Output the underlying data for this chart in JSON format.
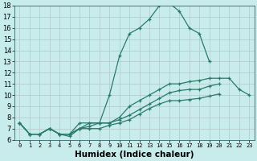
{
  "xlabel": "Humidex (Indice chaleur)",
  "ylabel": "",
  "xlim": [
    -0.5,
    23.5
  ],
  "ylim": [
    6,
    18
  ],
  "yticks": [
    6,
    7,
    8,
    9,
    10,
    11,
    12,
    13,
    14,
    15,
    16,
    17,
    18
  ],
  "xticks": [
    0,
    1,
    2,
    3,
    4,
    5,
    6,
    7,
    8,
    9,
    10,
    11,
    12,
    13,
    14,
    15,
    16,
    17,
    18,
    19,
    20,
    21,
    22,
    23
  ],
  "bg_color": "#c8ecec",
  "grid_color": "#b0c8c8",
  "line_color": "#2a7a6a",
  "lines": [
    {
      "x": [
        0,
        1,
        2,
        3,
        4,
        5,
        6,
        7,
        8,
        9,
        10,
        11,
        12,
        13,
        14,
        15,
        16,
        17,
        18,
        19
      ],
      "y": [
        7.5,
        6.5,
        6.5,
        7.0,
        6.5,
        6.5,
        7.5,
        7.5,
        7.5,
        10.0,
        13.5,
        15.5,
        16.0,
        16.8,
        18.0,
        18.2,
        17.5,
        16.0,
        15.5,
        13.0
      ]
    },
    {
      "x": [
        0,
        1,
        2,
        3,
        4,
        5,
        6,
        7,
        8,
        9,
        10,
        11,
        12,
        13,
        14,
        15,
        16,
        17,
        18,
        19,
        20,
        21,
        22,
        23
      ],
      "y": [
        7.5,
        6.5,
        6.5,
        7.0,
        6.5,
        6.5,
        7.0,
        7.5,
        7.5,
        7.5,
        8.0,
        9.0,
        9.5,
        10.0,
        10.5,
        11.0,
        11.0,
        11.2,
        11.3,
        11.5,
        11.5,
        11.5,
        10.5,
        10.0
      ]
    },
    {
      "x": [
        0,
        1,
        2,
        3,
        4,
        5,
        6,
        7,
        8,
        9,
        10,
        11,
        12,
        13,
        14,
        15,
        16,
        17,
        18,
        19,
        20
      ],
      "y": [
        7.5,
        6.5,
        6.5,
        7.0,
        6.5,
        6.5,
        7.0,
        7.2,
        7.5,
        7.5,
        7.8,
        8.2,
        8.7,
        9.2,
        9.7,
        10.2,
        10.4,
        10.5,
        10.5,
        10.8,
        11.0
      ]
    },
    {
      "x": [
        0,
        1,
        2,
        3,
        4,
        5,
        6,
        7,
        8,
        9,
        10,
        11,
        12,
        13,
        14,
        15,
        16,
        17,
        18,
        19,
        20
      ],
      "y": [
        7.5,
        6.5,
        6.5,
        7.0,
        6.5,
        6.3,
        7.0,
        7.0,
        7.0,
        7.3,
        7.5,
        7.8,
        8.3,
        8.8,
        9.2,
        9.5,
        9.5,
        9.6,
        9.7,
        9.9,
        10.1
      ]
    }
  ]
}
